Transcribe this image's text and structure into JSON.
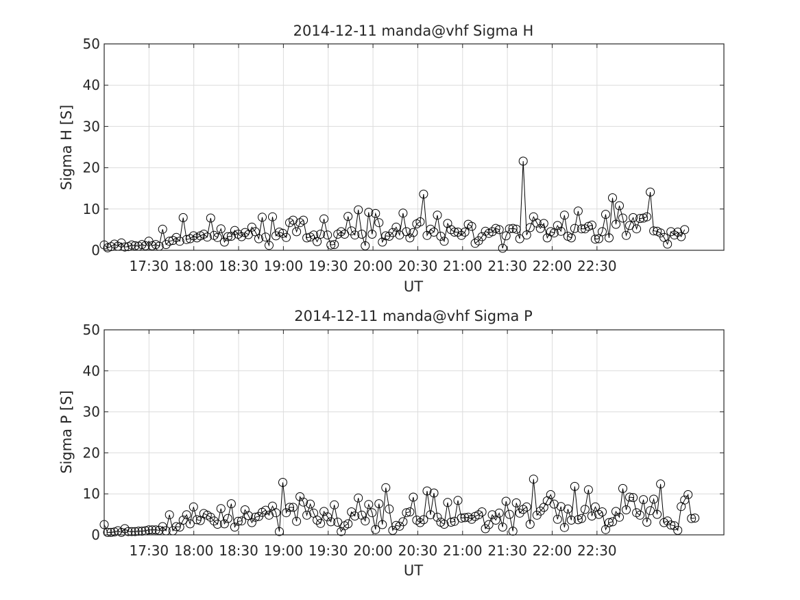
{
  "chart_data": [
    {
      "type": "line",
      "title": "2014-12-11  manda@vhf Sigma H",
      "xlabel": "UT",
      "ylabel": "Sigma H [S]",
      "ylim": [
        0,
        50
      ],
      "yticks": [
        "0",
        "10",
        "20",
        "30",
        "40",
        "50"
      ],
      "xlim": [
        "17:00",
        "23:55"
      ],
      "xticks": [
        "17:30",
        "18:00",
        "18:30",
        "19:00",
        "19:30",
        "20:00",
        "20:30",
        "21:00",
        "21:30",
        "22:00",
        "22:30"
      ],
      "grid": true,
      "marker": "circle",
      "x_start": "17:00",
      "x_step_minutes": 2.3,
      "values": [
        1.3,
        0.6,
        0.9,
        1.5,
        1.0,
        1.8,
        0.8,
        0.9,
        1.3,
        1.1,
        1.0,
        1.4,
        1.1,
        2.2,
        1.1,
        1.4,
        1.0,
        5.1,
        1.4,
        2.2,
        2.4,
        3.1,
        2.2,
        7.9,
        2.6,
        2.8,
        3.5,
        3.0,
        3.5,
        3.9,
        3.2,
        7.8,
        3.6,
        3.1,
        5.2,
        2.0,
        3.3,
        3.4,
        4.8,
        3.9,
        3.3,
        4.3,
        3.8,
        5.6,
        4.5,
        2.8,
        8.0,
        3.2,
        1.2,
        8.1,
        3.5,
        4.4,
        4.1,
        3.1,
        6.7,
        7.3,
        4.5,
        6.7,
        7.3,
        3.0,
        3.2,
        3.7,
        2.1,
        3.9,
        7.6,
        3.7,
        1.3,
        1.4,
        3.9,
        4.5,
        3.9,
        8.2,
        4.7,
        3.7,
        9.8,
        3.9,
        1.1,
        9.2,
        3.9,
        8.9,
        6.7,
        2.0,
        3.5,
        3.4,
        4.3,
        5.6,
        3.7,
        9.0,
        4.5,
        3.0,
        4.3,
        6.4,
        6.9,
        13.6,
        3.6,
        5.1,
        4.4,
        8.5,
        3.4,
        2.2,
        6.5,
        5.0,
        4.4,
        4.4,
        3.6,
        4.4,
        6.3,
        5.8,
        1.7,
        2.3,
        3.3,
        4.6,
        4.1,
        4.5,
        5.3,
        5.0,
        0.5,
        3.5,
        5.2,
        5.3,
        5.1,
        2.8,
        21.6,
        3.7,
        5.5,
        8.1,
        6.6,
        5.3,
        6.5,
        3.0,
        4.5,
        4.2,
        6.0,
        4.6,
        8.5,
        3.4,
        3.0,
        5.3,
        9.5,
        5.2,
        5.2,
        5.8,
        6.1,
        2.7,
        2.8,
        4.5,
        8.7,
        3.0,
        12.7,
        6.3,
        10.8,
        7.8,
        3.6,
        6.0,
        7.9,
        5.2,
        7.7,
        7.8,
        8.1,
        14.1,
        4.7,
        4.6,
        4.2,
        3.1,
        1.5,
        4.5,
        3.7,
        4.4,
        3.3,
        5.0
      ]
    },
    {
      "type": "line",
      "title": "2014-12-11  manda@vhf Sigma P",
      "xlabel": "UT",
      "ylabel": "Sigma P [S]",
      "ylim": [
        0,
        50
      ],
      "yticks": [
        "0",
        "10",
        "20",
        "30",
        "40",
        "50"
      ],
      "xlim": [
        "17:00",
        "23:55"
      ],
      "xticks": [
        "17:30",
        "18:00",
        "18:30",
        "19:00",
        "19:30",
        "20:00",
        "20:30",
        "21:00",
        "21:30",
        "22:00",
        "22:30"
      ],
      "grid": true,
      "marker": "circle",
      "x_start": "17:00",
      "x_step_minutes": 2.3,
      "values": [
        2.5,
        0.6,
        0.6,
        0.7,
        1.0,
        0.6,
        1.5,
        0.8,
        0.8,
        0.8,
        0.9,
        0.9,
        1.0,
        1.2,
        1.2,
        1.2,
        1.1,
        2.0,
        1.0,
        4.9,
        1.0,
        2.0,
        1.9,
        3.6,
        4.9,
        2.7,
        6.8,
        3.7,
        3.5,
        5.2,
        4.8,
        4.3,
        3.4,
        2.6,
        6.4,
        2.7,
        4.0,
        7.6,
        1.9,
        3.3,
        3.4,
        6.1,
        4.7,
        3.0,
        4.3,
        4.5,
        5.5,
        6.0,
        4.8,
        7.0,
        5.4,
        0.8,
        12.8,
        5.4,
        6.7,
        6.7,
        3.3,
        9.3,
        8.0,
        4.8,
        7.5,
        5.3,
        3.6,
        2.8,
        5.7,
        4.4,
        3.2,
        7.3,
        3.1,
        0.8,
        2.2,
        2.7,
        5.6,
        4.6,
        9.0,
        4.8,
        3.4,
        7.4,
        5.4,
        1.3,
        7.6,
        2.5,
        11.5,
        6.3,
        1.1,
        2.3,
        2.1,
        3.2,
        5.4,
        5.6,
        9.2,
        3.6,
        3.0,
        3.7,
        10.7,
        4.9,
        10.2,
        4.3,
        3.1,
        2.6,
        7.9,
        3.1,
        3.3,
        8.4,
        4.1,
        4.2,
        4.3,
        3.8,
        4.5,
        4.9,
        5.6,
        1.5,
        2.5,
        4.9,
        3.6,
        5.3,
        1.9,
        8.2,
        5.0,
        0.9,
        7.8,
        5.3,
        6.2,
        6.8,
        2.6,
        13.6,
        4.8,
        5.8,
        6.7,
        8.3,
        9.8,
        7.5,
        3.8,
        6.9,
        1.8,
        6.3,
        3.6,
        11.8,
        3.7,
        4.0,
        6.2,
        11.0,
        4.6,
        6.8,
        5.0,
        5.6,
        1.3,
        3.0,
        3.2,
        5.7,
        4.3,
        11.3,
        6.1,
        9.2,
        9.1,
        5.4,
        4.8,
        8.6,
        3.1,
        5.9,
        8.7,
        5.0,
        12.4,
        3.0,
        3.4,
        2.4,
        2.2,
        1.1,
        6.9,
        8.5,
        9.8,
        4.0,
        4.1
      ]
    }
  ]
}
